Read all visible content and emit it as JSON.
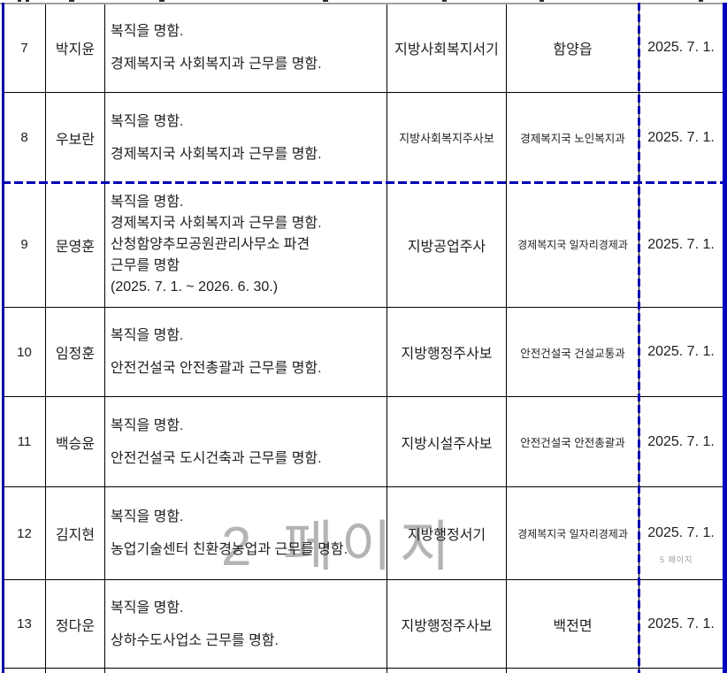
{
  "page": {
    "watermark_large": "2 페이지",
    "watermark_small": "5 페이지",
    "accent_blue": "#0000b4",
    "border_color": "#000000",
    "watermark_gray": "#b4b4b4"
  },
  "table": {
    "rows": [
      {
        "no": "7",
        "name": "박지윤",
        "desc": [
          "복직을 명함.",
          "경제복지국 사회복지과 근무를 명함."
        ],
        "title": "지방사회복지서기",
        "dept": "함양읍",
        "date": "2025. 7. 1."
      },
      {
        "no": "8",
        "name": "우보란",
        "desc": [
          "복직을 명함.",
          "경제복지국 사회복지과 근무를 명함."
        ],
        "title": "지방사회복지주사보",
        "dept": "경제복지국 노인복지과",
        "date": "2025. 7. 1."
      },
      {
        "no": "9",
        "name": "문영훈",
        "desc": [
          "복직을 명함.",
          "경제복지국 사회복지과 근무를 명함.",
          "산청함양추모공원관리사무소 파견",
          "근무를 명함",
          "(2025. 7. 1. ~ 2026. 6. 30.)"
        ],
        "title": "지방공업주사",
        "dept": "경제복지국 일자리경제과",
        "date": "2025. 7. 1."
      },
      {
        "no": "10",
        "name": "임정훈",
        "desc": [
          "복직을 명함.",
          "안전건설국 안전총괄과 근무를 명함."
        ],
        "title": "지방행정주사보",
        "dept": "안전건설국 건설교통과",
        "date": "2025. 7. 1."
      },
      {
        "no": "11",
        "name": "백승윤",
        "desc": [
          "복직을 명함.",
          "안전건설국 도시건축과 근무를 명함."
        ],
        "title": "지방시설주사보",
        "dept": "안전건설국 안전총괄과",
        "date": "2025. 7. 1."
      },
      {
        "no": "12",
        "name": "김지현",
        "desc": [
          "복직을 명함.",
          "농업기술센터 친환경농업과 근무를 명함."
        ],
        "title": "지방행정서기",
        "dept": "경제복지국 일자리경제과",
        "date": "2025. 7. 1."
      },
      {
        "no": "13",
        "name": "정다운",
        "desc": [
          "복직을 명함.",
          "상하수도사업소 근무를 명함."
        ],
        "title": "지방행정주사보",
        "dept": "백전면",
        "date": "2025. 7. 1."
      }
    ]
  }
}
